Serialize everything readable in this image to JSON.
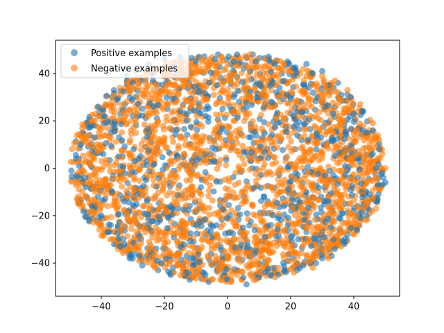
{
  "chart_data": {
    "type": "scatter",
    "title": "",
    "xlabel": "",
    "ylabel": "",
    "xlim": [
      -54.5,
      54.5
    ],
    "ylim": [
      -54,
      54
    ],
    "xticks": [
      -40,
      -20,
      0,
      20,
      40
    ],
    "yticks": [
      -40,
      -20,
      0,
      20,
      40
    ],
    "xtick_labels": [
      "−40",
      "−20",
      "0",
      "20",
      "40"
    ],
    "ytick_labels": [
      "−40",
      "−20",
      "0",
      "20",
      "40"
    ],
    "grid": false,
    "legend_position": "top-left",
    "point_alpha": 0.6,
    "series": [
      {
        "name": "Positive examples",
        "color": "#1f77b4",
        "points": [
          [
            -49.5,
            -1
          ],
          [
            -48,
            4
          ],
          [
            -46.5,
            10
          ],
          [
            -45,
            -8
          ],
          [
            -44,
            17
          ],
          [
            -43,
            -16
          ],
          [
            -42,
            13
          ],
          [
            -41,
            26
          ],
          [
            -40,
            -20
          ],
          [
            -39,
            19
          ],
          [
            -38,
            -27
          ],
          [
            -36,
            33
          ],
          [
            -34,
            -33
          ],
          [
            -32,
            39
          ],
          [
            -31,
            -38
          ],
          [
            -29,
            41
          ],
          [
            -27,
            -41
          ],
          [
            -25,
            44
          ],
          [
            -22,
            -43
          ],
          [
            -20,
            46
          ],
          [
            -18,
            -45
          ],
          [
            -15,
            47
          ],
          [
            -12,
            -47
          ],
          [
            -9,
            47
          ],
          [
            -6,
            -48
          ],
          [
            -3,
            48
          ],
          [
            0,
            -47
          ],
          [
            3,
            48
          ],
          [
            6,
            -49
          ],
          [
            8,
            48
          ],
          [
            10,
            -46
          ],
          [
            13,
            47
          ],
          [
            16,
            -45
          ],
          [
            19,
            45
          ],
          [
            22,
            -43
          ],
          [
            25,
            44
          ],
          [
            28,
            -40
          ],
          [
            30,
            41
          ],
          [
            33,
            -37
          ],
          [
            35,
            36
          ],
          [
            37,
            -32
          ],
          [
            39,
            30
          ],
          [
            41,
            -26
          ],
          [
            43,
            24
          ],
          [
            44,
            -20
          ],
          [
            46,
            16
          ],
          [
            47,
            -14
          ],
          [
            48,
            8
          ],
          [
            49,
            -2
          ],
          [
            50,
            -6
          ],
          [
            -47,
            1
          ],
          [
            -45,
            -4
          ],
          [
            -43,
            7
          ],
          [
            -41,
            -12
          ],
          [
            -39,
            22
          ],
          [
            -37,
            -24
          ],
          [
            -35,
            29
          ],
          [
            -33,
            -30
          ],
          [
            -30,
            36
          ],
          [
            -28,
            -37
          ],
          [
            -24,
            40
          ],
          [
            -21,
            -40
          ],
          [
            -17,
            43
          ],
          [
            -13,
            -44
          ],
          [
            -10,
            45
          ],
          [
            -7,
            -45
          ],
          [
            -4,
            46
          ],
          [
            -1,
            -44
          ],
          [
            2,
            45
          ],
          [
            5,
            -46
          ],
          [
            9,
            45
          ],
          [
            12,
            -44
          ],
          [
            15,
            44
          ],
          [
            18,
            -43
          ],
          [
            21,
            42
          ],
          [
            24,
            -41
          ],
          [
            27,
            40
          ],
          [
            30,
            -38
          ],
          [
            32,
            35
          ],
          [
            34,
            -34
          ],
          [
            36,
            31
          ],
          [
            38,
            -28
          ],
          [
            40,
            23
          ],
          [
            42,
            -21
          ],
          [
            44,
            15
          ],
          [
            45,
            -11
          ],
          [
            46,
            6
          ],
          [
            47,
            0
          ]
        ]
      },
      {
        "name": "Negative examples",
        "color": "#ff7f0e",
        "points": [
          [
            -48,
            -7
          ],
          [
            -47,
            3
          ],
          [
            -45,
            -12
          ],
          [
            -44,
            11
          ],
          [
            -43,
            -18
          ],
          [
            -42,
            20
          ],
          [
            -40,
            -24
          ],
          [
            -39,
            14
          ],
          [
            -37,
            26
          ],
          [
            -36,
            -30
          ],
          [
            -34,
            31
          ],
          [
            -32,
            -35
          ],
          [
            -30,
            34
          ],
          [
            -28,
            -39
          ],
          [
            -26,
            38
          ],
          [
            -23,
            -42
          ],
          [
            -20,
            41
          ],
          [
            -17,
            -44
          ],
          [
            -14,
            45
          ],
          [
            -11,
            -46
          ],
          [
            -8,
            46
          ],
          [
            -5,
            -47
          ],
          [
            -2,
            47
          ],
          [
            1,
            -48
          ],
          [
            4,
            46
          ],
          [
            7,
            48
          ],
          [
            9,
            -47
          ],
          [
            12,
            46
          ],
          [
            15,
            -46
          ],
          [
            18,
            44
          ],
          [
            21,
            -44
          ],
          [
            24,
            42
          ],
          [
            27,
            -42
          ],
          [
            30,
            39
          ],
          [
            32,
            -38
          ],
          [
            34,
            37
          ],
          [
            36,
            -33
          ],
          [
            38,
            33
          ],
          [
            40,
            -28
          ],
          [
            42,
            27
          ],
          [
            44,
            -22
          ],
          [
            46,
            19
          ],
          [
            47,
            -17
          ],
          [
            48,
            12
          ],
          [
            49,
            6
          ],
          [
            50,
            0
          ],
          [
            48,
            -9
          ],
          [
            46,
            -13
          ],
          [
            -46,
            -2
          ],
          [
            -44,
            6
          ],
          [
            -42,
            -10
          ],
          [
            -40,
            8
          ],
          [
            -38,
            -16
          ],
          [
            -36,
            22
          ],
          [
            -34,
            -26
          ],
          [
            -32,
            28
          ],
          [
            -29,
            -33
          ],
          [
            -26,
            36
          ],
          [
            -23,
            -37
          ],
          [
            -19,
            39
          ],
          [
            -16,
            -41
          ],
          [
            -12,
            42
          ],
          [
            -9,
            -43
          ],
          [
            -6,
            43
          ],
          [
            -3,
            -44
          ],
          [
            0,
            44
          ],
          [
            3,
            -45
          ],
          [
            6,
            43
          ],
          [
            10,
            -44
          ],
          [
            13,
            43
          ],
          [
            16,
            -42
          ],
          [
            19,
            41
          ],
          [
            22,
            -40
          ],
          [
            25,
            39
          ],
          [
            28,
            -36
          ],
          [
            31,
            35
          ],
          [
            33,
            -32
          ],
          [
            35,
            30
          ],
          [
            37,
            -27
          ],
          [
            39,
            25
          ],
          [
            41,
            -20
          ],
          [
            43,
            18
          ],
          [
            44,
            -14
          ],
          [
            45,
            10
          ],
          [
            46,
            3
          ],
          [
            47,
            -4
          ]
        ]
      }
    ]
  }
}
